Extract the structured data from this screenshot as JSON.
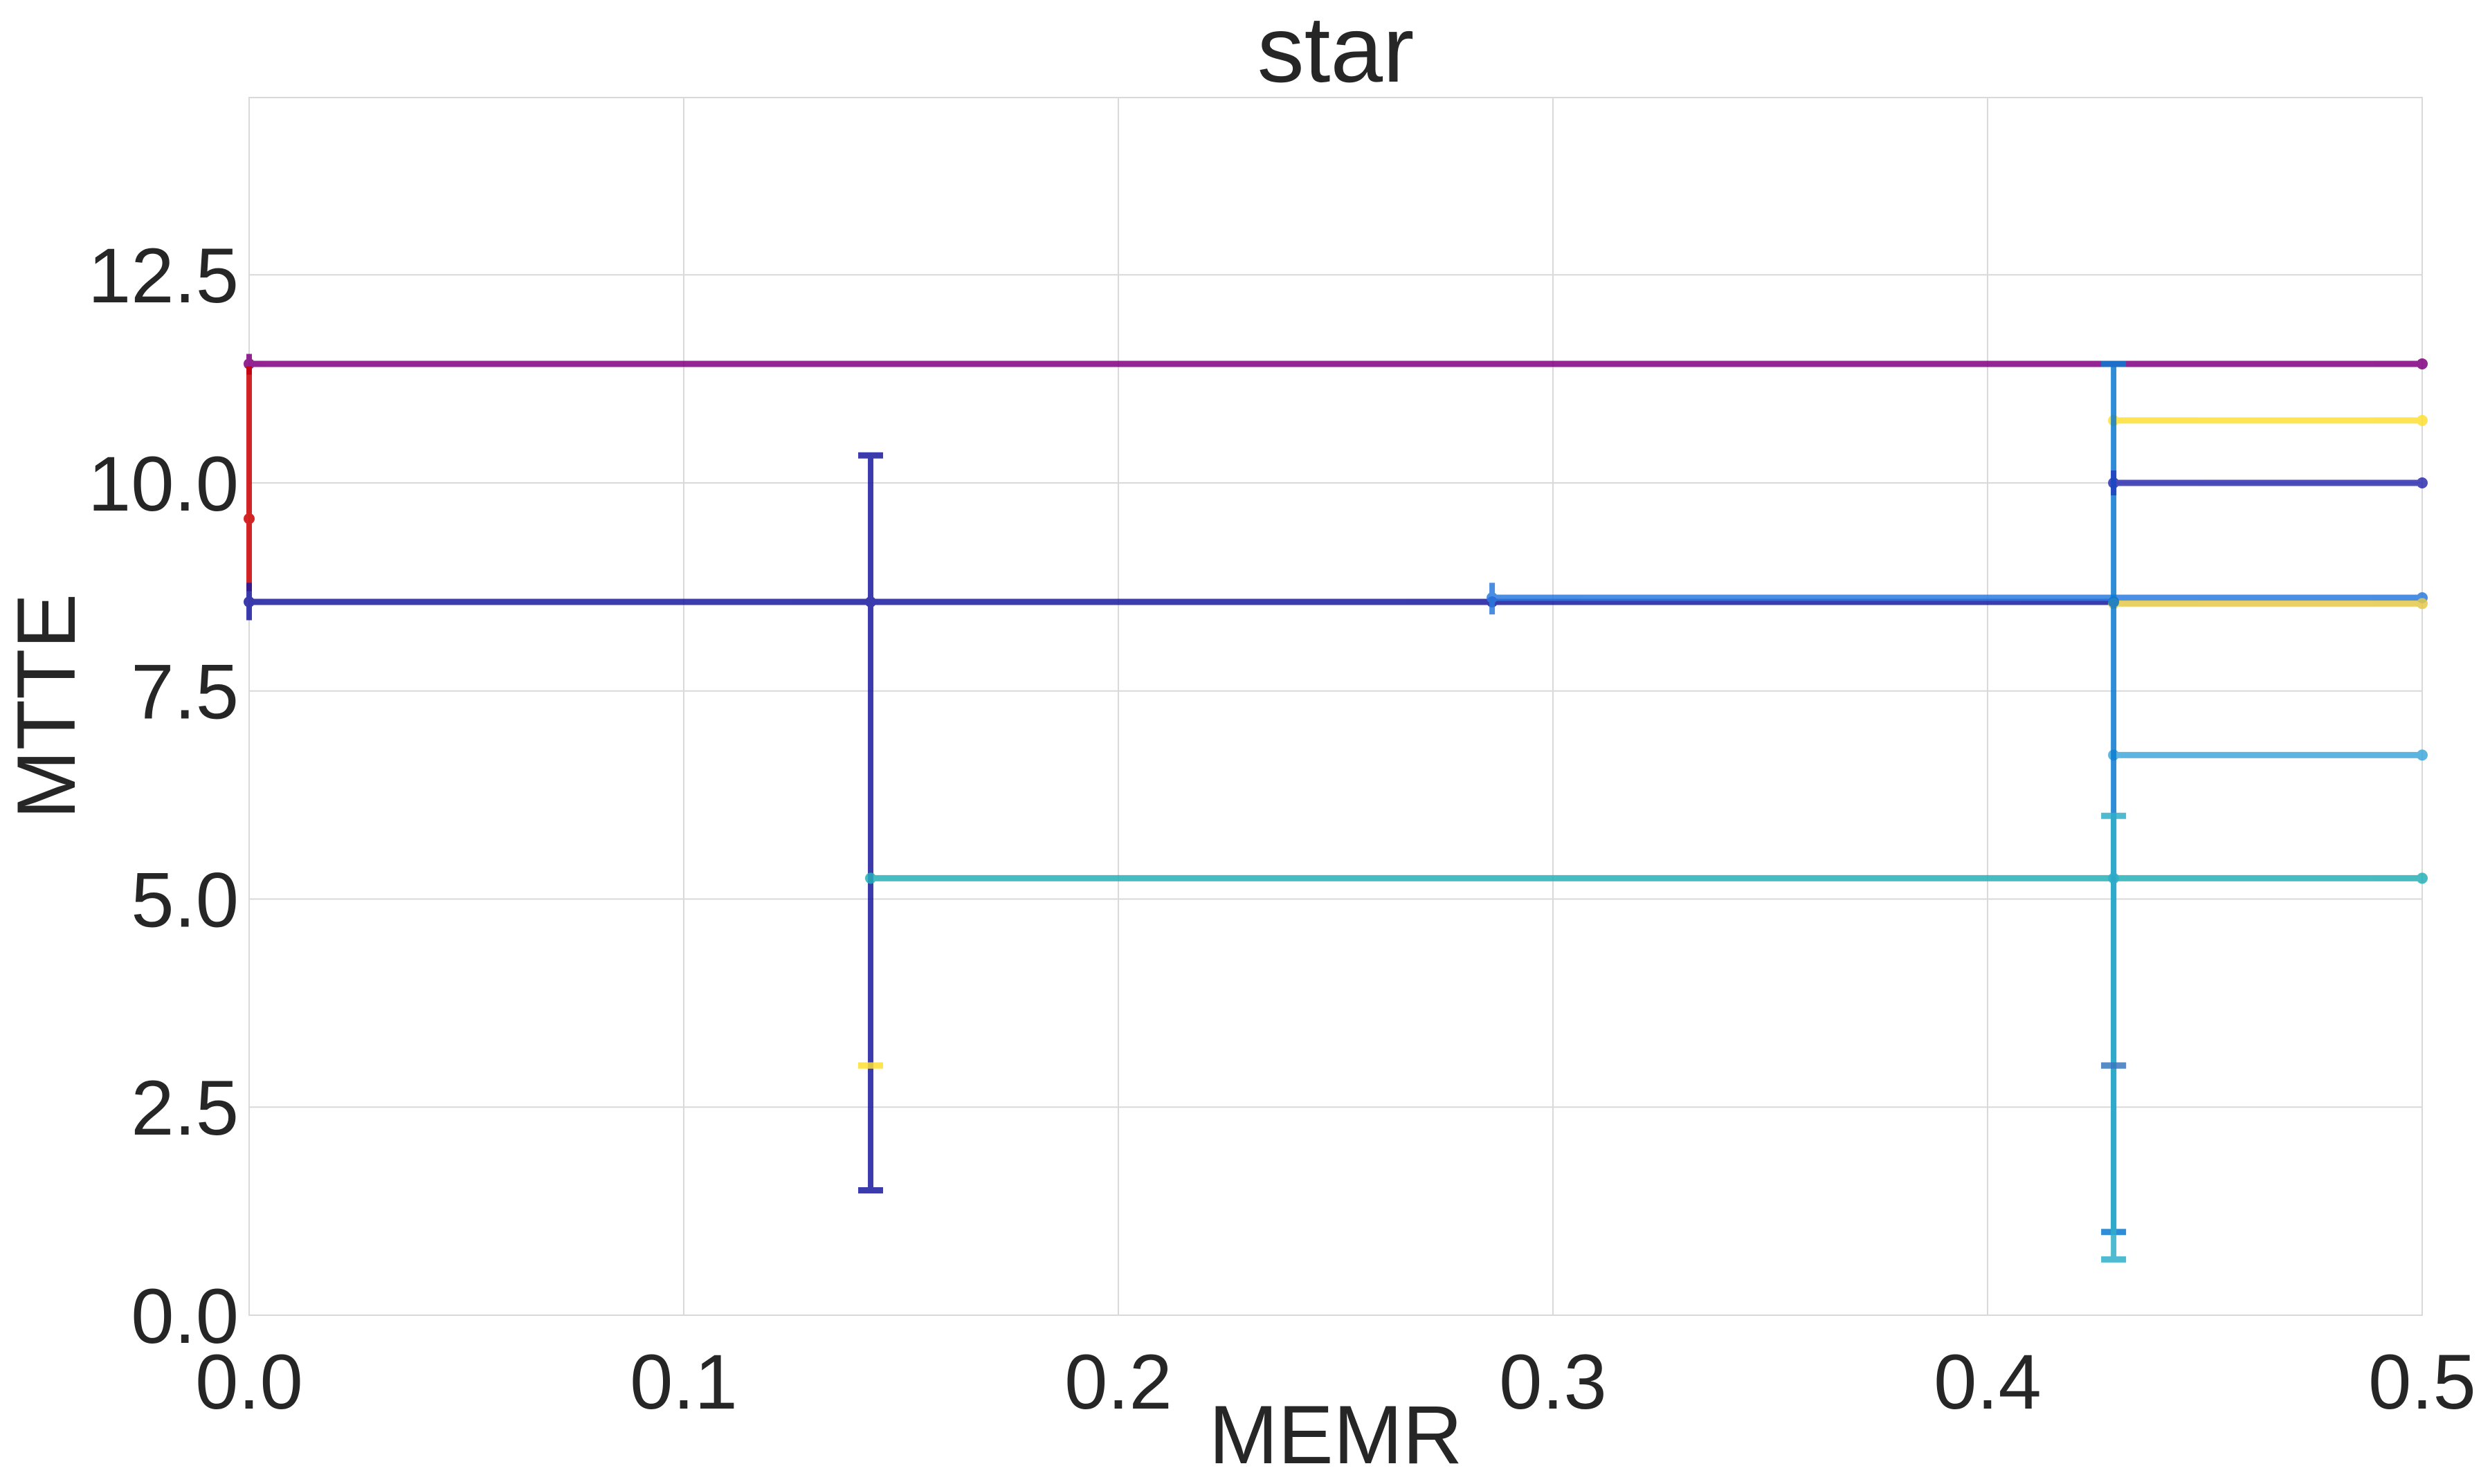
{
  "chart_data": {
    "type": "line",
    "title": "star",
    "xlabel": "MEMR",
    "ylabel": "MTTE",
    "xlim": [
      0,
      0.5
    ],
    "ylim": [
      0,
      14.63
    ],
    "x_ticks": [
      "0.0",
      "0.1",
      "0.2",
      "0.3",
      "0.4",
      "0.5"
    ],
    "y_ticks": [
      "0.0",
      "2.5",
      "5.0",
      "7.5",
      "10.0",
      "12.5"
    ],
    "x_tick_values": [
      0,
      0.1,
      0.2,
      0.3,
      0.4,
      0.5
    ],
    "y_tick_values": [
      0,
      2.5,
      5.0,
      7.5,
      10.0,
      12.5
    ],
    "grid": true,
    "series": [
      {
        "color": "#800080",
        "points": [
          [
            0.0,
            11.43
          ],
          [
            0.5,
            11.43
          ]
        ],
        "errorbars": [
          {
            "x": 0.0,
            "low": 11.3,
            "high": 11.55,
            "cap": false
          }
        ]
      },
      {
        "color": "#cc0000",
        "points": [
          [
            0.0,
            9.57
          ]
        ],
        "errorbars": [
          {
            "x": 0.0,
            "low": 8.7,
            "high": 11.4,
            "cap": false
          }
        ]
      },
      {
        "color": "#1a1aa0",
        "points": [
          [
            0.0,
            8.57
          ],
          [
            0.143,
            8.57
          ],
          [
            0.286,
            8.57
          ],
          [
            0.429,
            8.57
          ]
        ],
        "errorbars": [
          {
            "x": 0.0,
            "low": 8.35,
            "high": 8.8,
            "cap": false
          },
          {
            "x": 0.143,
            "low": 1.5,
            "high": 10.33,
            "cap": true
          }
        ]
      },
      {
        "color": "#2b7be0",
        "points": [
          [
            0.286,
            8.62
          ],
          [
            0.5,
            8.62
          ]
        ],
        "errorbars": [
          {
            "x": 0.286,
            "low": 8.42,
            "high": 8.8,
            "cap": false
          }
        ]
      },
      {
        "color": "#26b0b8",
        "points": [
          [
            0.143,
            5.25
          ],
          [
            0.5,
            5.25
          ]
        ],
        "errorbars": []
      },
      {
        "color": "#ffe033",
        "points": [
          [
            0.429,
            10.75
          ],
          [
            0.5,
            10.75
          ]
        ],
        "errorbars": [
          {
            "x": 0.143,
            "low": 3.0,
            "high": 3.0,
            "cap": true
          }
        ]
      },
      {
        "color": "#2d2db0",
        "points": [
          [
            0.429,
            10.0
          ],
          [
            0.5,
            10.0
          ]
        ],
        "errorbars": []
      },
      {
        "color": "#e6c84a",
        "points": [
          [
            0.429,
            8.55
          ],
          [
            0.5,
            8.55
          ]
        ],
        "errorbars": []
      },
      {
        "color": "#40a8dc",
        "points": [
          [
            0.429,
            6.73
          ],
          [
            0.5,
            6.73
          ]
        ],
        "errorbars": []
      },
      {
        "color": "#0a7ad0",
        "points": [
          [
            0.429,
            8.57
          ]
        ],
        "errorbars": [
          {
            "x": 0.429,
            "low": 1.0,
            "high": 11.43,
            "cap": true
          }
        ]
      },
      {
        "color": "#30b0c8",
        "points": [
          [
            0.429,
            5.25
          ]
        ],
        "errorbars": [
          {
            "x": 0.429,
            "low": 0.67,
            "high": 6.0,
            "cap": true
          }
        ]
      },
      {
        "color": "#3a78c0",
        "points": [],
        "errorbars": [
          {
            "x": 0.429,
            "low": 3.0,
            "high": 3.0,
            "cap": true
          }
        ]
      },
      {
        "color": "#1f3fbf",
        "points": [],
        "errorbars": [
          {
            "x": 0.429,
            "low": 9.85,
            "high": 10.15,
            "cap": false
          }
        ]
      }
    ]
  }
}
